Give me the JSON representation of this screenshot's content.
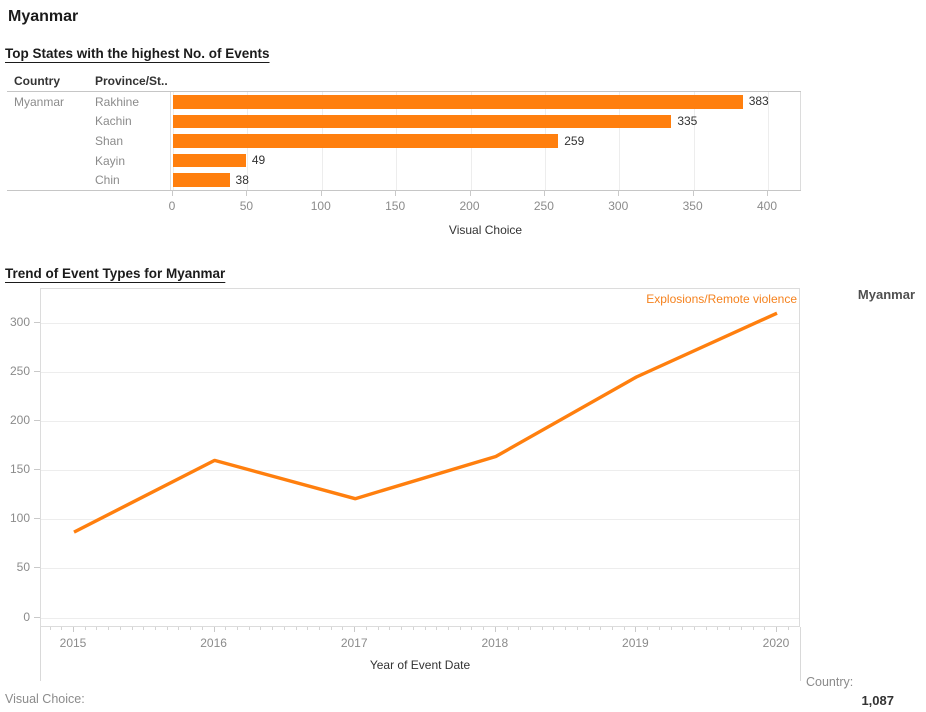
{
  "page": {
    "title": "Myanmar"
  },
  "bar_section": {
    "title": "Top States with the highest No. of Events",
    "columns": {
      "country": "Country",
      "province": "Province/St.."
    },
    "country_label": "Myanmar"
  },
  "line_section": {
    "title": "Trend of Event Types for Myanmar",
    "series_label": "Explosions/Remote violence"
  },
  "legend": {
    "label": "Myanmar"
  },
  "footer": {
    "left_label": "Visual Choice:",
    "right_label": "Country:",
    "right_value": "1,087"
  },
  "colors": {
    "accent_orange": "#ff7f0e",
    "text_dark": "#333333",
    "text_gray": "#8b8b8b",
    "gridline": "#ededed"
  },
  "chart_data": [
    {
      "type": "bar",
      "title": "Top States with the highest No. of Events",
      "orientation": "horizontal",
      "country": "Myanmar",
      "categories": [
        "Rakhine",
        "Kachin",
        "Shan",
        "Kayin",
        "Chin"
      ],
      "values": [
        383,
        335,
        259,
        49,
        38
      ],
      "xlabel": "Visual Choice",
      "ylabel": "Province/St..",
      "xlim": [
        0,
        423
      ],
      "x_ticks": [
        0,
        50,
        100,
        150,
        200,
        250,
        300,
        350,
        400
      ],
      "grid": true,
      "bar_color": "#ff7f0e",
      "value_labels": true
    },
    {
      "type": "line",
      "title": "Trend of Event Types for Myanmar",
      "x": [
        2015,
        2016,
        2017,
        2018,
        2019,
        2020
      ],
      "series": [
        {
          "name": "Explosions/Remote violence",
          "values": [
            87,
            160,
            121,
            164,
            245,
            310
          ]
        }
      ],
      "xlabel": "Year of Event Date",
      "ylim": [
        -11,
        335
      ],
      "y_ticks": [
        0,
        50,
        100,
        150,
        200,
        250,
        300
      ],
      "grid": true,
      "minor_x_ticks": "monthly",
      "line_color": "#ff7f0e",
      "legend_position": "right",
      "legend_label": "Myanmar",
      "annotation": "Explosions/Remote violence",
      "total": "1,087"
    }
  ]
}
